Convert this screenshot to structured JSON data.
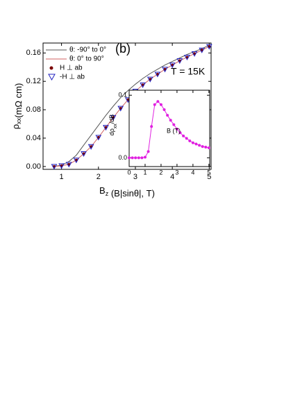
{
  "chart_data": [
    {
      "type": "line",
      "annotations": [
        "(b)",
        "T = 15K"
      ],
      "x_label": [
        "B",
        "z",
        " (B|sinθ|, T)"
      ],
      "y_label": [
        "ρ",
        "xx",
        "(mΩ cm)"
      ],
      "x": [
        0.8,
        1.0,
        1.2,
        1.4,
        1.6,
        1.8,
        2.0,
        2.2,
        2.4,
        2.6,
        2.8,
        3.0,
        3.2,
        3.4,
        3.6,
        3.8,
        4.0,
        4.2,
        4.4,
        4.6,
        4.8,
        5.0
      ],
      "series": [
        {
          "name": "θ: -90° to 0°",
          "color": "#555555",
          "line": true,
          "marker": null,
          "values": [
            0,
            0.002,
            0.007,
            0.016,
            0.03,
            0.044,
            0.058,
            0.072,
            0.085,
            0.097,
            0.107,
            0.116,
            0.124,
            0.131,
            0.137,
            0.143,
            0.148,
            0.153,
            0.158,
            0.162,
            0.166,
            0.171
          ]
        },
        {
          "name": "θ:  0° to 90°",
          "color": "#d06060",
          "line": true,
          "marker": null,
          "values": [
            0,
            0.001,
            0.003,
            0.009,
            0.018,
            0.028,
            0.041,
            0.055,
            0.069,
            0.082,
            0.094,
            0.106,
            0.115,
            0.123,
            0.13,
            0.137,
            0.143,
            0.149,
            0.154,
            0.159,
            0.164,
            0.169
          ]
        },
        {
          "name": "H ⊥ ab",
          "color": "#7a0000",
          "line": false,
          "marker": "circle",
          "values": [
            0,
            0.001,
            0.003,
            0.009,
            0.018,
            0.028,
            0.041,
            0.055,
            0.069,
            0.082,
            0.094,
            0.106,
            0.115,
            0.123,
            0.13,
            0.137,
            0.143,
            0.149,
            0.154,
            0.159,
            0.164,
            0.169
          ]
        },
        {
          "name": "-H ⊥ ab",
          "color": "#2020c0",
          "line": false,
          "marker": "triangle",
          "values": [
            0,
            0.001,
            0.003,
            0.009,
            0.018,
            0.028,
            0.041,
            0.055,
            0.069,
            0.082,
            0.094,
            0.106,
            0.115,
            0.123,
            0.13,
            0.137,
            0.143,
            0.149,
            0.154,
            0.159,
            0.164,
            0.169
          ]
        }
      ],
      "xlim": [
        0.5,
        5.05
      ],
      "ylim": [
        -0.004,
        0.174
      ],
      "xticks": [
        1,
        2,
        3,
        4,
        5
      ],
      "yticks": [
        {
          "value": 0,
          "label": "0.00"
        },
        {
          "value": 0.04,
          "label": "0.04"
        },
        {
          "value": 0.08,
          "label": "0.08"
        },
        {
          "value": 0.12,
          "label": "0.12"
        },
        {
          "value": 0.16,
          "label": "0.16"
        }
      ]
    },
    {
      "type": "line",
      "x_label": "B (T)",
      "y_label": [
        "dρ",
        "xx",
        "/dB"
      ],
      "x": [
        0,
        0.2,
        0.4,
        0.6,
        0.8,
        1.0,
        1.2,
        1.4,
        1.6,
        1.8,
        2.0,
        2.2,
        2.4,
        2.6,
        2.8,
        3.0,
        3.2,
        3.4,
        3.6,
        3.8,
        4.0,
        4.2,
        4.4,
        4.6,
        4.8,
        5.0
      ],
      "series": [
        {
          "color": "#e020e0",
          "line": true,
          "marker": "circle",
          "values": [
            0,
            0,
            0,
            0,
            0,
            0.001,
            0.01,
            0.05,
            0.085,
            0.09,
            0.085,
            0.077,
            0.068,
            0.06,
            0.053,
            0.046,
            0.04,
            0.035,
            0.031,
            0.027,
            0.024,
            0.022,
            0.02,
            0.018,
            0.017,
            0.016
          ]
        }
      ],
      "xlim": [
        0,
        5.05
      ],
      "ylim": [
        -0.014,
        0.108
      ],
      "xticks": [
        0,
        1,
        2,
        3,
        4,
        5
      ],
      "yticks": [
        {
          "value": 0,
          "label": "0.0"
        },
        {
          "value": 0.1,
          "label": "0.1"
        }
      ]
    }
  ]
}
